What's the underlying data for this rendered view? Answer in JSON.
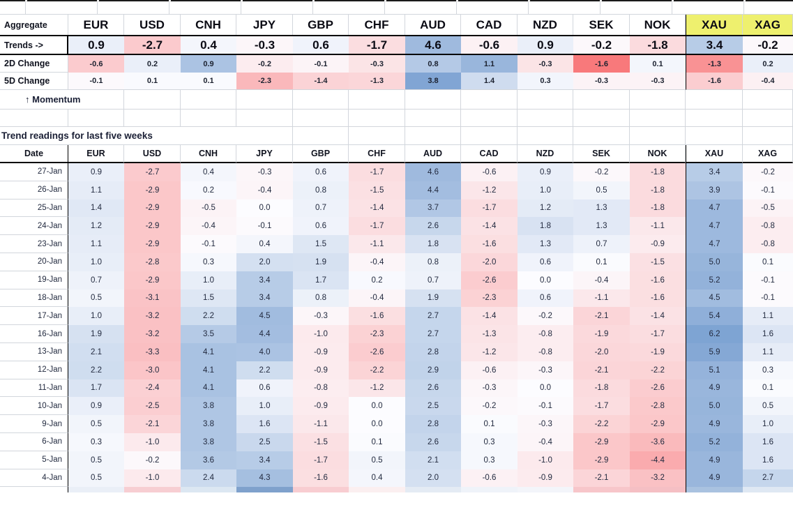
{
  "colors": {
    "heat_red": "#F8696B",
    "heat_mid": "#FCFCFF",
    "heat_blue": "#5A8AC6",
    "highlight_yellow": "#EEF06E",
    "grid_line": "#d2d6dc",
    "border_black": "#000000",
    "clipped_top_strip": "#1a1a1a"
  },
  "top_table": {
    "corner_label": "Aggregate",
    "currencies": [
      "EUR",
      "USD",
      "CNH",
      "JPY",
      "GBP",
      "CHF",
      "AUD",
      "CAD",
      "NZD",
      "SEK",
      "NOK",
      "XAU",
      "XAG"
    ],
    "highlight_currencies": [
      "XAU",
      "XAG"
    ],
    "rows": [
      {
        "label": "Trends ->",
        "values": [
          0.9,
          -2.7,
          0.4,
          -0.3,
          0.6,
          -1.7,
          4.6,
          -0.6,
          0.9,
          -0.2,
          -1.8,
          3.4,
          -0.2
        ]
      },
      {
        "label": "2D Change",
        "values": [
          -0.6,
          0.2,
          0.9,
          -0.2,
          -0.1,
          -0.3,
          0.8,
          1.1,
          -0.3,
          -1.6,
          0.1,
          -1.3,
          0.2
        ]
      },
      {
        "label": "5D Change",
        "values": [
          -0.1,
          0.1,
          0.1,
          -2.3,
          -1.4,
          -1.3,
          3.8,
          1.4,
          0.3,
          -0.3,
          -0.3,
          -1.6,
          -0.4
        ]
      }
    ]
  },
  "momentum_label": "↑ Momentum",
  "history_table": {
    "title": "Trend readings for last five weeks",
    "date_header": "Date",
    "columns": [
      "EUR",
      "USD",
      "CNH",
      "JPY",
      "GBP",
      "CHF",
      "AUD",
      "CAD",
      "NZD",
      "SEK",
      "NOK",
      "XAU",
      "XAG"
    ],
    "rows": [
      {
        "date": "27-Jan",
        "values": [
          0.9,
          -2.7,
          0.4,
          -0.3,
          0.6,
          -1.7,
          4.6,
          -0.6,
          0.9,
          -0.2,
          -1.8,
          3.4,
          -0.2
        ]
      },
      {
        "date": "26-Jan",
        "values": [
          1.1,
          -2.9,
          0.2,
          -0.4,
          0.8,
          -1.5,
          4.4,
          -1.2,
          1.0,
          0.5,
          -1.8,
          3.9,
          -0.1
        ]
      },
      {
        "date": "25-Jan",
        "values": [
          1.4,
          -2.9,
          -0.5,
          0.0,
          0.7,
          -1.4,
          3.7,
          -1.7,
          1.2,
          1.3,
          -1.8,
          4.7,
          -0.5
        ]
      },
      {
        "date": "24-Jan",
        "values": [
          1.2,
          -2.9,
          -0.4,
          -0.1,
          0.6,
          -1.7,
          2.6,
          -1.4,
          1.8,
          1.3,
          -1.1,
          4.7,
          -0.8
        ]
      },
      {
        "date": "23-Jan",
        "values": [
          1.1,
          -2.9,
          -0.1,
          0.4,
          1.5,
          -1.1,
          1.8,
          -1.6,
          1.3,
          0.7,
          -0.9,
          4.7,
          -0.8
        ]
      },
      {
        "date": "20-Jan",
        "values": [
          1.0,
          -2.8,
          0.3,
          2.0,
          1.9,
          -0.4,
          0.8,
          -2.0,
          0.6,
          0.1,
          -1.5,
          5.0,
          0.1
        ]
      },
      {
        "date": "19-Jan",
        "values": [
          0.7,
          -2.9,
          1.0,
          3.4,
          1.7,
          0.2,
          0.7,
          -2.6,
          0.0,
          -0.4,
          -1.6,
          5.2,
          -0.1
        ]
      },
      {
        "date": "18-Jan",
        "values": [
          0.5,
          -3.1,
          1.5,
          3.4,
          0.8,
          -0.4,
          1.9,
          -2.3,
          0.6,
          -1.1,
          -1.6,
          4.5,
          -0.1
        ]
      },
      {
        "date": "17-Jan",
        "values": [
          1.0,
          -3.2,
          2.2,
          4.5,
          -0.3,
          -1.6,
          2.7,
          -1.4,
          -0.2,
          -2.1,
          -1.4,
          5.4,
          1.1
        ]
      },
      {
        "date": "16-Jan",
        "values": [
          1.9,
          -3.2,
          3.5,
          4.4,
          -1.0,
          -2.3,
          2.7,
          -1.3,
          -0.8,
          -1.9,
          -1.7,
          6.2,
          1.6
        ]
      },
      {
        "date": "13-Jan",
        "values": [
          2.1,
          -3.3,
          4.1,
          4.0,
          -0.9,
          -2.6,
          2.8,
          -1.2,
          -0.8,
          -2.0,
          -1.9,
          5.9,
          1.1
        ]
      },
      {
        "date": "12-Jan",
        "values": [
          2.2,
          -3.0,
          4.1,
          2.2,
          -0.9,
          -2.2,
          2.9,
          -0.6,
          -0.3,
          -2.1,
          -2.2,
          5.1,
          0.3
        ]
      },
      {
        "date": "11-Jan",
        "values": [
          1.7,
          -2.4,
          4.1,
          0.6,
          -0.8,
          -1.2,
          2.6,
          -0.3,
          0.0,
          -1.8,
          -2.6,
          4.9,
          0.1
        ]
      },
      {
        "date": "10-Jan",
        "values": [
          0.9,
          -2.5,
          3.8,
          1.0,
          -0.9,
          0.0,
          2.5,
          -0.2,
          -0.1,
          -1.7,
          -2.8,
          5.0,
          0.5
        ]
      },
      {
        "date": "9-Jan",
        "values": [
          0.5,
          -2.1,
          3.8,
          1.6,
          -1.1,
          0.0,
          2.8,
          0.1,
          -0.3,
          -2.2,
          -2.9,
          4.9,
          1.0
        ]
      },
      {
        "date": "6-Jan",
        "values": [
          0.3,
          -1.0,
          3.8,
          2.5,
          -1.5,
          0.1,
          2.6,
          0.3,
          -0.4,
          -2.9,
          -3.6,
          5.2,
          1.6
        ]
      },
      {
        "date": "5-Jan",
        "values": [
          0.5,
          -0.2,
          3.6,
          3.4,
          -1.7,
          0.5,
          2.1,
          0.3,
          -1.0,
          -2.9,
          -4.4,
          4.9,
          1.6
        ]
      },
      {
        "date": "4-Jan",
        "values": [
          0.5,
          -1.0,
          2.4,
          4.3,
          -1.6,
          0.4,
          2.0,
          -0.6,
          -0.9,
          -2.1,
          -3.2,
          4.9,
          2.7
        ]
      }
    ],
    "clipped_bottom_row_colors": [
      "#EAEFF7",
      "#F7CED2",
      "#DCE7F2",
      "#7FA1CC",
      "#F8CDD1",
      "#FBEFF0",
      "#E4EBF4",
      "#EFF3F9",
      "#F3F5FA",
      "#F7C6CA",
      "#F5BFC4",
      "#A9C2E0",
      "#DFE8F3"
    ]
  }
}
